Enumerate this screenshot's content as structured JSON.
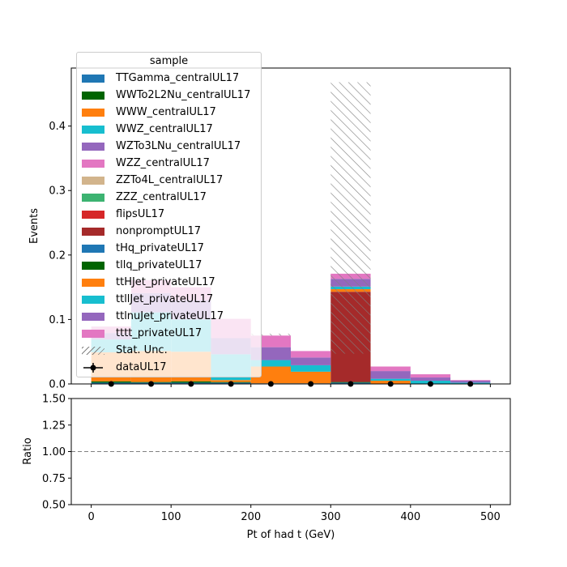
{
  "chart_data": [
    {
      "type": "bar",
      "stacked": true,
      "ylabel": "Events",
      "ylim": [
        0,
        0.49
      ],
      "xlim": [
        -25,
        525
      ],
      "yticks": [
        "0.0",
        "0.1",
        "0.2",
        "0.3",
        "0.4"
      ],
      "ytick_values": [
        0,
        0.1,
        0.2,
        0.3,
        0.4
      ],
      "xticks_top_labels": false,
      "bin_edges": [
        0,
        50,
        100,
        150,
        200,
        250,
        300,
        350,
        400,
        450,
        500
      ],
      "legend_title": "sample",
      "legend_position": "upper-left",
      "series": [
        {
          "name": "TTGamma_centralUL17",
          "color": "#1f77b4",
          "values": [
            0.002,
            0.002,
            0.002,
            0.002,
            0.001,
            0.001,
            0.002,
            0.0,
            0.0,
            0.0
          ]
        },
        {
          "name": "WWTo2L2Nu_centralUL17",
          "color": "#006400",
          "values": [
            0.002,
            0.001,
            0.002,
            0.001,
            0.0,
            0.0,
            0.001,
            0.0,
            0.0,
            0.0
          ]
        },
        {
          "name": "WWW_centralUL17",
          "color": "#ff7f0e",
          "values": [
            0.0,
            0.0,
            0.0,
            0.0,
            0.0,
            0.0,
            0.0,
            0.0,
            0.0,
            0.0
          ]
        },
        {
          "name": "WWZ_centralUL17",
          "color": "#17becf",
          "values": [
            0.0,
            0.0,
            0.0,
            0.0,
            0.0,
            0.0,
            0.0,
            0.0,
            0.0,
            0.0
          ]
        },
        {
          "name": "WZTo3LNu_centralUL17",
          "color": "#9467bd",
          "values": [
            0.0,
            0.0,
            0.0,
            0.0,
            0.0,
            0.0,
            0.0,
            0.0,
            0.0,
            0.0
          ]
        },
        {
          "name": "WZZ_centralUL17",
          "color": "#e377c2",
          "values": [
            0.0,
            0.0,
            0.0,
            0.0,
            0.0,
            0.0,
            0.0,
            0.0,
            0.0,
            0.0
          ]
        },
        {
          "name": "ZZTo4L_centralUL17",
          "color": "#d2b48c",
          "values": [
            0.0,
            0.0,
            0.0,
            0.0,
            0.0,
            0.0,
            0.0,
            0.0,
            0.0,
            0.0
          ]
        },
        {
          "name": "ZZZ_centralUL17",
          "color": "#3cb371",
          "values": [
            0.0,
            0.0,
            0.0,
            0.0,
            0.0,
            0.0,
            0.0,
            0.0,
            0.0,
            0.0
          ]
        },
        {
          "name": "flipsUL17",
          "color": "#d62728",
          "values": [
            0.0,
            0.0,
            0.0,
            0.0,
            0.0,
            0.0,
            0.0,
            0.0,
            0.0,
            0.0
          ]
        },
        {
          "name": "nonpromptUL17",
          "color": "#a52a2a",
          "values": [
            0.0,
            0.0,
            0.0,
            0.0,
            0.0,
            0.0,
            0.14,
            0.0,
            0.0,
            0.0
          ]
        },
        {
          "name": "tHq_privateUL17",
          "color": "#1f77b4",
          "values": [
            0.0,
            0.0,
            0.0,
            0.0,
            0.0,
            0.0,
            0.0,
            0.0,
            0.0,
            0.0
          ]
        },
        {
          "name": "tllq_privateUL17",
          "color": "#006400",
          "values": [
            0.0,
            0.0,
            0.0,
            0.0,
            0.0,
            0.0,
            0.0,
            0.0,
            0.0,
            0.0
          ]
        },
        {
          "name": "ttHJet_privateUL17",
          "color": "#ff7f0e",
          "values": [
            0.045,
            0.048,
            0.046,
            0.003,
            0.026,
            0.018,
            0.004,
            0.005,
            0.0,
            0.0
          ]
        },
        {
          "name": "ttllJet_privateUL17",
          "color": "#17becf",
          "values": [
            0.02,
            0.06,
            0.05,
            0.04,
            0.01,
            0.01,
            0.004,
            0.003,
            0.005,
            0.002
          ]
        },
        {
          "name": "ttlnuJet_privateUL17",
          "color": "#9467bd",
          "values": [
            0.01,
            0.03,
            0.03,
            0.025,
            0.02,
            0.012,
            0.012,
            0.012,
            0.005,
            0.003
          ]
        },
        {
          "name": "tttt_privateUL17",
          "color": "#e377c2",
          "values": [
            0.01,
            0.02,
            0.02,
            0.03,
            0.018,
            0.01,
            0.008,
            0.007,
            0.005,
            0.001
          ]
        }
      ],
      "stat_unc": {
        "name": "Stat. Unc.",
        "lower": [
          0.0,
          0.0,
          0.0,
          0.0,
          0.075,
          0.0,
          0.047,
          0.0,
          0.0,
          0.0
        ],
        "upper": [
          0.0,
          0.0,
          0.0,
          0.0,
          0.078,
          0.0,
          0.468,
          0.0,
          0.0,
          0.0
        ]
      },
      "data": {
        "name": "dataUL17",
        "x": [
          25,
          75,
          125,
          175,
          225,
          275,
          325,
          375,
          425,
          475
        ],
        "y": [
          0,
          0,
          0,
          0,
          0,
          0,
          0,
          0,
          0,
          0
        ]
      }
    },
    {
      "type": "line",
      "xlabel": "Pt of had t (GeV)",
      "ylabel": "Ratio",
      "ylim": [
        0.5,
        1.5
      ],
      "xlim": [
        -25,
        525
      ],
      "yticks": [
        "0.50",
        "0.75",
        "1.00",
        "1.25",
        "1.50"
      ],
      "ytick_values": [
        0.5,
        0.75,
        1.0,
        1.25,
        1.5
      ],
      "xticks": [
        "0",
        "100",
        "200",
        "300",
        "400",
        "500"
      ],
      "xtick_values": [
        0,
        100,
        200,
        300,
        400,
        500
      ],
      "reference_line": 1.0
    }
  ]
}
